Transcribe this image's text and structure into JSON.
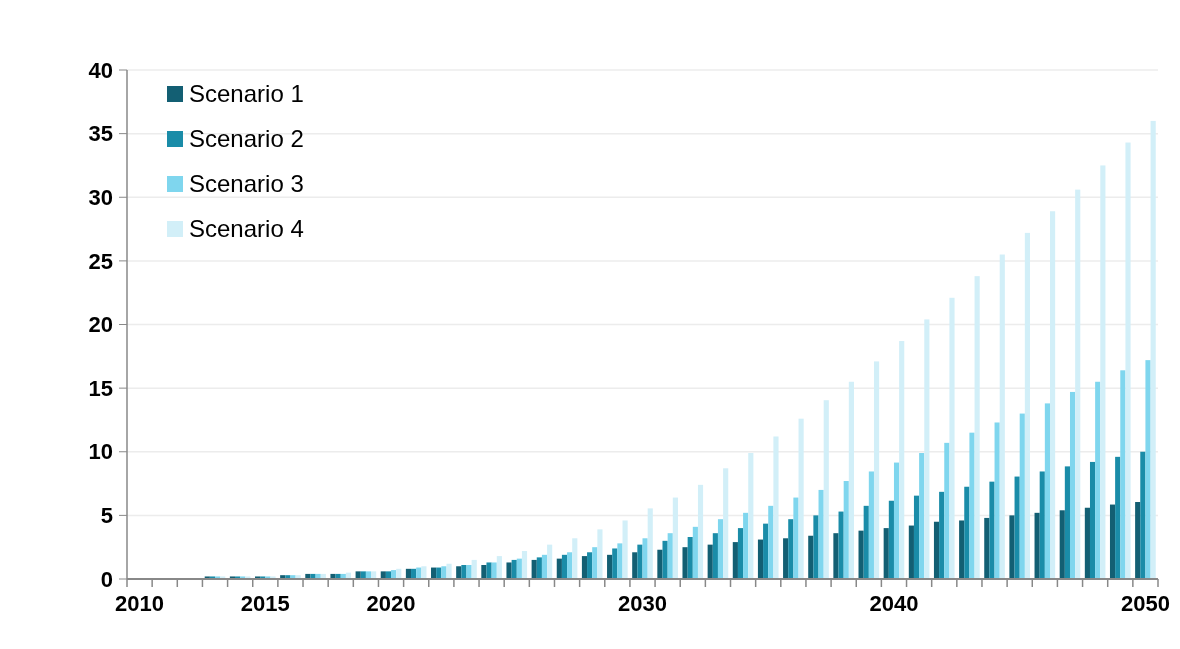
{
  "chart_data": {
    "type": "bar",
    "categories": [
      "2010",
      null,
      null,
      null,
      null,
      "2015",
      null,
      null,
      null,
      null,
      "2020",
      null,
      null,
      null,
      null,
      null,
      null,
      null,
      null,
      null,
      "2030",
      null,
      null,
      null,
      null,
      null,
      null,
      null,
      null,
      null,
      "2040",
      null,
      null,
      null,
      null,
      null,
      null,
      null,
      null,
      null,
      "2050"
    ],
    "series": [
      {
        "name": "Scenario 1",
        "color": "#135f73",
        "values": [
          null,
          null,
          null,
          0.2,
          0.2,
          0.2,
          0.3,
          0.4,
          0.4,
          0.6,
          0.6,
          0.8,
          0.9,
          1.0,
          1.1,
          1.3,
          1.5,
          1.6,
          1.8,
          1.9,
          2.1,
          2.3,
          2.5,
          2.7,
          2.9,
          3.1,
          3.2,
          3.4,
          3.6,
          3.8,
          4.0,
          4.2,
          4.5,
          4.6,
          4.8,
          5.0,
          5.2,
          5.4,
          5.6,
          5.85,
          6.05
        ]
      },
      {
        "name": "Scenario 2",
        "color": "#1a8ca8",
        "values": [
          null,
          null,
          null,
          0.2,
          0.2,
          0.2,
          0.3,
          0.4,
          0.4,
          0.6,
          0.6,
          0.8,
          0.9,
          1.1,
          1.3,
          1.5,
          1.7,
          1.9,
          2.1,
          2.4,
          2.7,
          3.0,
          3.3,
          3.6,
          4.0,
          4.35,
          4.7,
          5.0,
          5.3,
          5.75,
          6.15,
          6.55,
          6.85,
          7.25,
          7.65,
          8.05,
          8.45,
          8.85,
          9.2,
          9.6,
          10.0
        ]
      },
      {
        "name": "Scenario 3",
        "color": "#7fd6ee",
        "values": [
          null,
          null,
          null,
          0.2,
          0.2,
          0.2,
          0.3,
          0.4,
          0.4,
          0.6,
          0.7,
          0.9,
          1.0,
          1.1,
          1.3,
          1.6,
          1.9,
          2.1,
          2.5,
          2.8,
          3.2,
          3.6,
          4.1,
          4.7,
          5.2,
          5.75,
          6.4,
          7.0,
          7.7,
          8.45,
          9.15,
          9.9,
          10.7,
          11.5,
          12.3,
          13.0,
          13.8,
          14.7,
          15.5,
          16.4,
          17.2
        ]
      },
      {
        "name": "Scenario 4",
        "color": "#d2eff8",
        "values": [
          null,
          null,
          null,
          0.2,
          0.2,
          0.2,
          0.3,
          0.4,
          0.5,
          0.6,
          0.8,
          1.0,
          1.2,
          1.5,
          1.8,
          2.2,
          2.7,
          3.2,
          3.9,
          4.6,
          5.55,
          6.4,
          7.4,
          8.7,
          9.9,
          11.2,
          12.6,
          14.05,
          15.5,
          17.1,
          18.7,
          20.4,
          22.1,
          23.8,
          25.5,
          27.2,
          28.9,
          30.6,
          32.5,
          34.3,
          36.0
        ]
      }
    ],
    "ylim": [
      0,
      40
    ],
    "yticks": [
      0,
      5,
      10,
      15,
      20,
      25,
      30,
      35,
      40
    ],
    "grid": "y",
    "legend": "top left"
  }
}
